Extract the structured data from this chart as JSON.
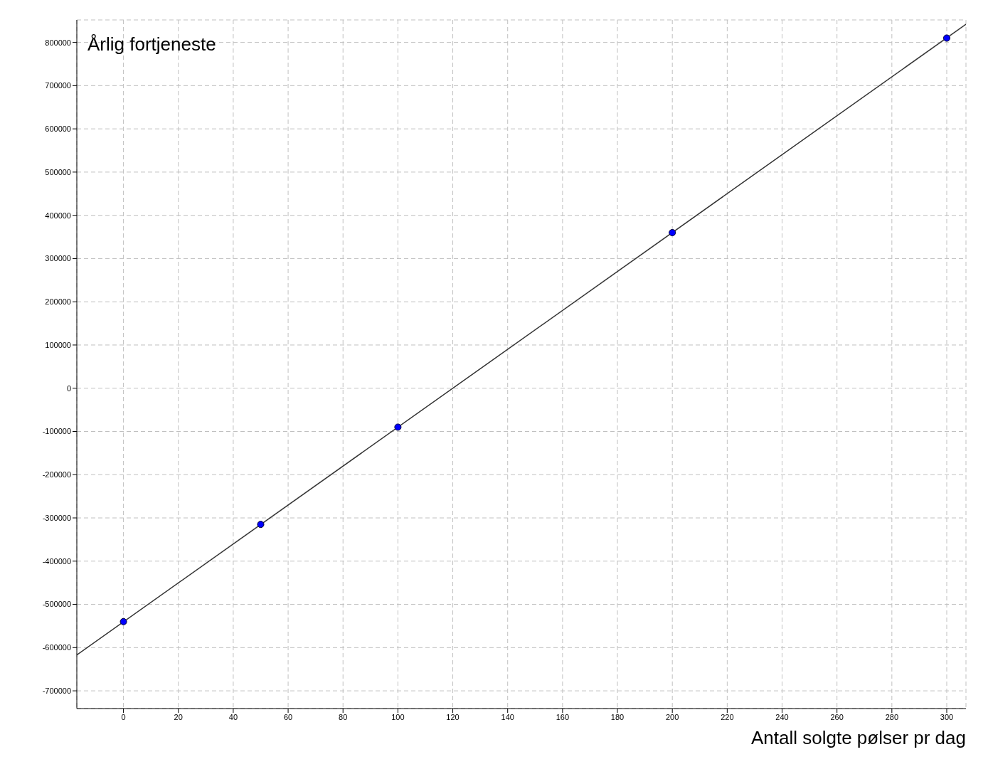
{
  "chart_data": {
    "type": "line",
    "xlabel": "Antall solgte pølser pr dag",
    "ylabel": "Årlig fortjeneste",
    "series": [
      {
        "color": "#333333",
        "x": [
          -17,
          307
        ],
        "values": [
          -617000,
          842000
        ],
        "marker": "none"
      },
      {
        "type": "scatter",
        "color": "#0000ff",
        "x": [
          0,
          50,
          100,
          200,
          300
        ],
        "values": [
          -540000,
          -315000,
          -90000,
          360000,
          810000
        ],
        "marker": "circle"
      }
    ],
    "xlim": [
      -17,
      307
    ],
    "xticks": [
      0,
      20,
      40,
      60,
      80,
      100,
      120,
      140,
      160,
      180,
      200,
      220,
      240,
      260,
      280,
      300
    ],
    "ylim": [
      -741000,
      852000
    ],
    "yticks": [
      -700000,
      -600000,
      -500000,
      -400000,
      -300000,
      -200000,
      -100000,
      0,
      100000,
      200000,
      300000,
      400000,
      500000,
      600000,
      700000,
      800000
    ],
    "grid": true
  }
}
